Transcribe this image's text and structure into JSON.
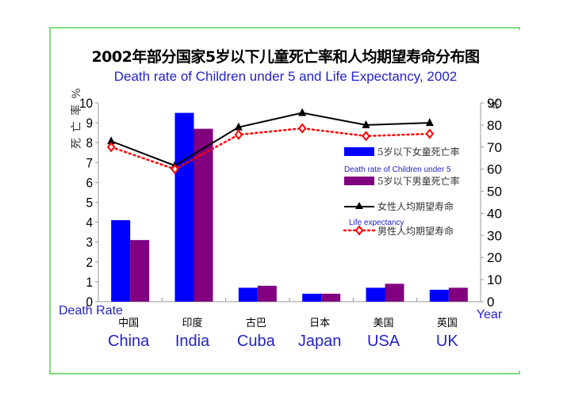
{
  "chart_data": {
    "type": "bar",
    "title": "2002年部分国家5岁以下儿童死亡率和人均期望寿命分布图",
    "subtitle": "Death rate of Children under 5 and Life Expectancy, 2002",
    "categories_cn": [
      "中国",
      "印度",
      "古巴",
      "日本",
      "美国",
      "英国"
    ],
    "categories": [
      "China",
      "India",
      "Cuba",
      "Japan",
      "USA",
      "UK"
    ],
    "left_axis": {
      "label_cn": "死亡率%",
      "label_en": "Death Rate",
      "range": [
        0,
        10
      ],
      "ticks": [
        "0",
        "1",
        "2",
        "3",
        "4",
        "5",
        "6",
        "7",
        "8",
        "9",
        "10"
      ]
    },
    "right_axis": {
      "label_cn": "岁",
      "label_en": "Year",
      "range": [
        0,
        90
      ],
      "ticks": [
        "0",
        "10",
        "20",
        "30",
        "40",
        "50",
        "60",
        "70",
        "80",
        "90"
      ]
    },
    "series": [
      {
        "name": "5岁以下女童死亡率",
        "type": "bar",
        "axis": "left",
        "color": "#0000ff",
        "values": [
          4.1,
          9.5,
          0.7,
          0.4,
          0.7,
          0.6
        ]
      },
      {
        "name": "5岁以下男童死亡率",
        "type": "bar",
        "axis": "left",
        "color": "#800080",
        "values": [
          3.1,
          8.7,
          0.8,
          0.4,
          0.9,
          0.7
        ]
      },
      {
        "name": "女性人均期望寿命",
        "type": "line",
        "axis": "right",
        "color": "#000000",
        "marker": "triangle",
        "values": [
          72.7,
          61.6,
          79.0,
          85.5,
          80.0,
          81.0
        ]
      },
      {
        "name": "男性人均期望寿命",
        "type": "line",
        "axis": "right",
        "color": "#ff0000",
        "marker": "diamond",
        "dash": "dotted",
        "values": [
          70.0,
          60.0,
          75.6,
          78.5,
          75.0,
          76.0
        ]
      }
    ],
    "legend": {
      "position": "right",
      "group_labels": [
        "Death rate of Children under 5",
        "Life expectancy"
      ]
    },
    "grid": false
  }
}
